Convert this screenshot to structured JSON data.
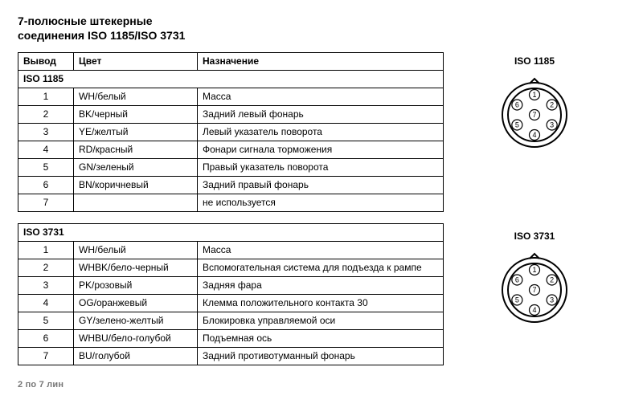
{
  "title_line1": "7-полюсные штекерные",
  "title_line2": "соединения ISO 1185/ISO 3731",
  "headers": {
    "pin": "Вывод",
    "color": "Цвет",
    "function": "Назначение"
  },
  "sections": {
    "iso1185": {
      "name": "ISO 1185",
      "diagram_label": "ISO 1185"
    },
    "iso3731": {
      "name": "ISO 3731",
      "diagram_label": "ISO 3731"
    }
  },
  "iso1185_rows": [
    {
      "pin": "1",
      "color": "WH/белый",
      "func": "Масса"
    },
    {
      "pin": "2",
      "color": "BK/черный",
      "func": "Задний левый фонарь"
    },
    {
      "pin": "3",
      "color": "YE/желтый",
      "func": "Левый указатель поворота"
    },
    {
      "pin": "4",
      "color": "RD/красный",
      "func": "Фонари сигнала торможения"
    },
    {
      "pin": "5",
      "color": "GN/зеленый",
      "func": "Правый указатель поворота"
    },
    {
      "pin": "6",
      "color": "BN/коричневый",
      "func": "Задний правый фонарь"
    },
    {
      "pin": "7",
      "color": "",
      "func": "не используется"
    }
  ],
  "iso3731_rows": [
    {
      "pin": "1",
      "color": "WH/белый",
      "func": "Масса"
    },
    {
      "pin": "2",
      "color": "WHBK/бело-черный",
      "func": "Вспомогательная система для подъезда к рампе"
    },
    {
      "pin": "3",
      "color": "PK/розовый",
      "func": "Задняя фара"
    },
    {
      "pin": "4",
      "color": "OG/оранжевый",
      "func": "Клемма положительного контакта 30"
    },
    {
      "pin": "5",
      "color": "GY/зелено-желтый",
      "func": "Блокировка управляемой оси"
    },
    {
      "pin": "6",
      "color": "WHBU/бело-голубой",
      "func": "Подъемная ось"
    },
    {
      "pin": "7",
      "color": "BU/голубой",
      "func": "Задний противотуманный фонарь"
    }
  ],
  "connector": {
    "outer_r": 40,
    "inner_r": 33,
    "ring_r": 25,
    "pin_r": 6.5,
    "center_pin": "7",
    "outer_pins": [
      "1",
      "2",
      "3",
      "4",
      "5",
      "6"
    ],
    "start_angle_deg": -90,
    "notch": true
  },
  "footer": "2 по 7 лин",
  "style": {
    "bg": "#ffffff",
    "text": "#000000",
    "border": "#000000",
    "footer_color": "#777777",
    "title_fs": 14,
    "table_fs": 12,
    "label_fs": 12
  }
}
